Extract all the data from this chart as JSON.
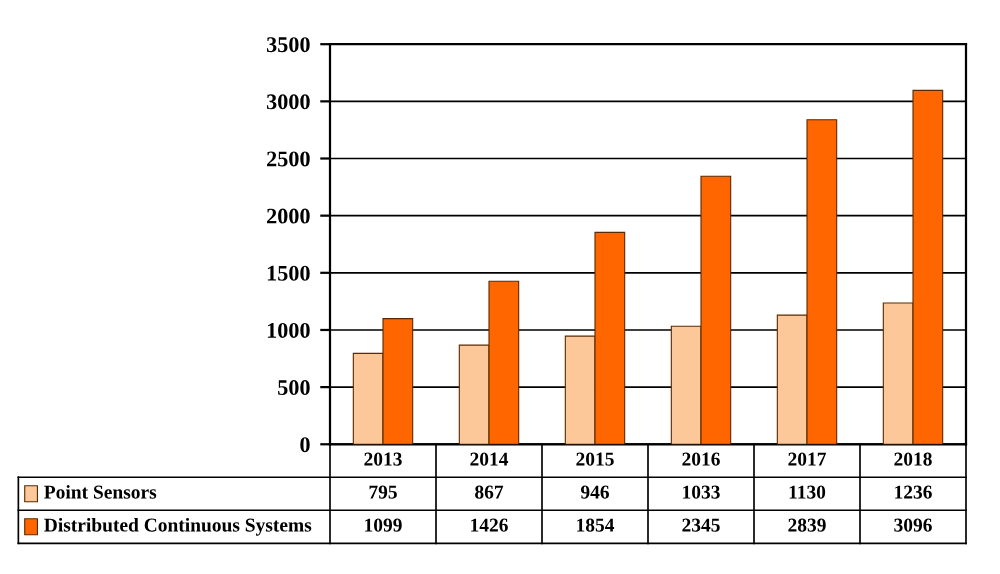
{
  "chart_data": {
    "type": "bar",
    "categories": [
      "2013",
      "2014",
      "2015",
      "2016",
      "2017",
      "2018"
    ],
    "series": [
      {
        "name": "Point Sensors",
        "color": "#fcc89a",
        "values": [
          795,
          867,
          946,
          1033,
          1130,
          1236
        ]
      },
      {
        "name": "Distributed Continuous Systems",
        "color": "#ff6600",
        "values": [
          1099,
          1426,
          1854,
          2345,
          2839,
          3096
        ]
      }
    ],
    "ylim": [
      0,
      3500
    ],
    "yticks": [
      0,
      500,
      1000,
      1500,
      2000,
      2500,
      3000,
      3500
    ],
    "grid": "y",
    "legend": "bottom",
    "data_labels": true
  }
}
